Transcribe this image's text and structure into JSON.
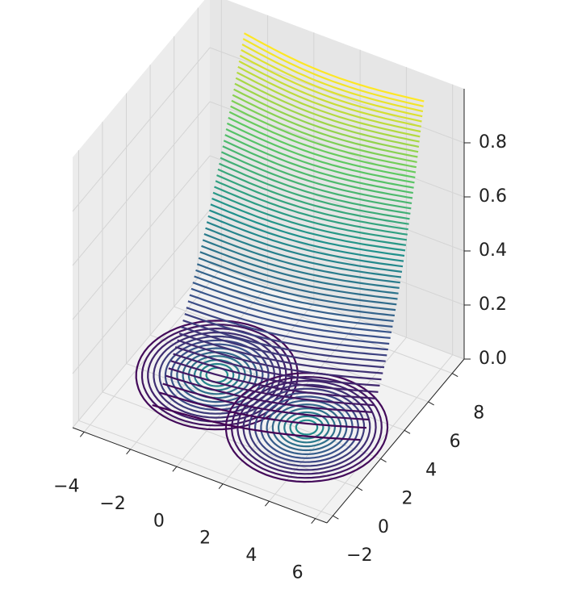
{
  "chart_data": {
    "type": "contour3d",
    "colormap": "viridis",
    "xlim": [
      -4.5,
      6.5
    ],
    "ylim": [
      -2.5,
      9
    ],
    "zlim": [
      0,
      1
    ],
    "xticks": [
      {
        "value": -4,
        "label": "−4"
      },
      {
        "value": -2,
        "label": "−2"
      },
      0,
      2,
      4,
      6
    ],
    "yticks": [
      {
        "value": -2,
        "label": "−2"
      },
      0,
      2,
      4,
      6,
      8
    ],
    "zticks": [
      {
        "value": 0,
        "label": "0.0"
      },
      {
        "value": 0.2,
        "label": "0.2"
      },
      {
        "value": 0.4,
        "label": "0.4"
      },
      {
        "value": 0.6,
        "label": "0.6"
      },
      {
        "value": 0.8,
        "label": "0.8"
      }
    ],
    "grid": true
  }
}
